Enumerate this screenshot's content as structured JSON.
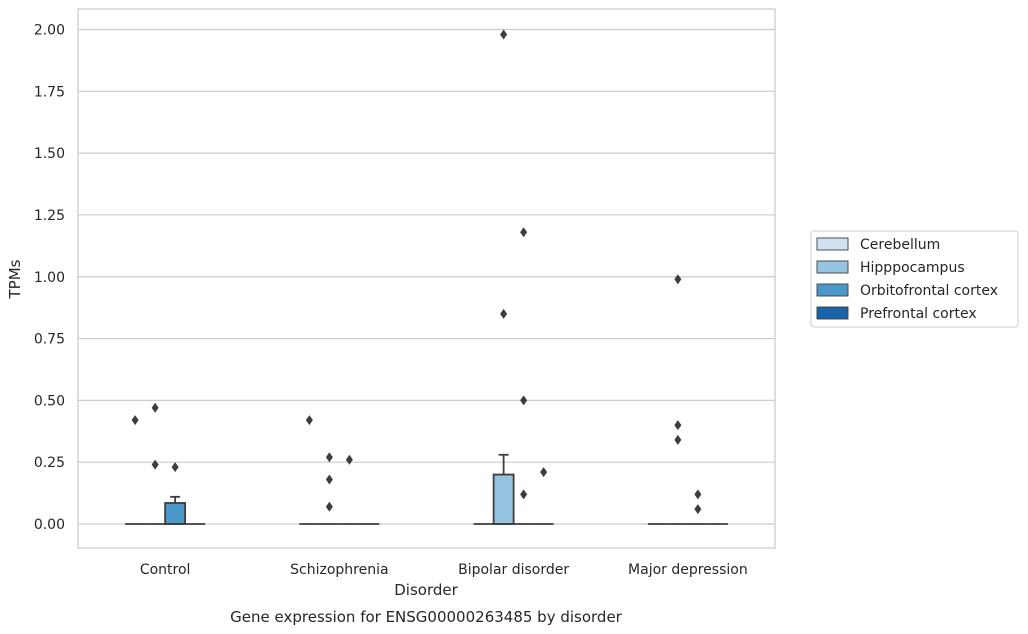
{
  "chart_data": {
    "type": "box",
    "title": "",
    "caption": "Gene expression for ENSG00000263485 by disorder",
    "xlabel": "Disorder",
    "ylabel": "TPMs",
    "ylim": [
      -0.1,
      2.08
    ],
    "yticks": [
      0.0,
      0.25,
      0.5,
      0.75,
      1.0,
      1.25,
      1.5,
      1.75,
      2.0
    ],
    "ytick_labels": [
      "0.00",
      "0.25",
      "0.50",
      "0.75",
      "1.00",
      "1.25",
      "1.50",
      "1.75",
      "2.00"
    ],
    "grid": "horizontal",
    "legend_placement": "right",
    "categories": [
      "Control",
      "Schizophrenia",
      "Bipolar disorder",
      "Major depression"
    ],
    "series": [
      {
        "name": "Cerebellum",
        "color": "#d0e1f2",
        "boxes": [
          {
            "category": "Control",
            "q1": 0,
            "median": 0,
            "q3": 0,
            "whisker_low": 0,
            "whisker_high": 0,
            "outliers": [
              0.42
            ]
          },
          {
            "category": "Schizophrenia",
            "q1": 0,
            "median": 0,
            "q3": 0,
            "whisker_low": 0,
            "whisker_high": 0,
            "outliers": [
              0.42
            ]
          },
          {
            "category": "Bipolar disorder",
            "q1": 0,
            "median": 0,
            "q3": 0,
            "whisker_low": 0,
            "whisker_high": 0,
            "outliers": []
          },
          {
            "category": "Major depression",
            "q1": 0,
            "median": 0,
            "q3": 0,
            "whisker_low": 0,
            "whisker_high": 0,
            "outliers": []
          }
        ]
      },
      {
        "name": "Hipppocampus",
        "color": "#94c4df",
        "boxes": [
          {
            "category": "Control",
            "q1": 0,
            "median": 0,
            "q3": 0,
            "whisker_low": 0,
            "whisker_high": 0,
            "outliers": [
              0.47,
              0.24
            ]
          },
          {
            "category": "Schizophrenia",
            "q1": 0,
            "median": 0,
            "q3": 0,
            "whisker_low": 0,
            "whisker_high": 0,
            "outliers": [
              0.27,
              0.18,
              0.07
            ]
          },
          {
            "category": "Bipolar disorder",
            "q1": 0,
            "median": 0,
            "q3": 0.2,
            "whisker_low": 0,
            "whisker_high": 0.28,
            "outliers": [
              1.98,
              0.85
            ]
          },
          {
            "category": "Major depression",
            "q1": 0,
            "median": 0,
            "q3": 0,
            "whisker_low": 0,
            "whisker_high": 0,
            "outliers": [
              0.99,
              0.4,
              0.34
            ]
          }
        ]
      },
      {
        "name": "Orbitofrontal cortex",
        "color": "#4a98c9",
        "boxes": [
          {
            "category": "Control",
            "q1": 0,
            "median": 0,
            "q3": 0.085,
            "whisker_low": 0,
            "whisker_high": 0.11,
            "outliers": [
              0.23
            ]
          },
          {
            "category": "Schizophrenia",
            "q1": 0,
            "median": 0,
            "q3": 0,
            "whisker_low": 0,
            "whisker_high": 0,
            "outliers": [
              0.26
            ]
          },
          {
            "category": "Bipolar disorder",
            "q1": 0,
            "median": 0,
            "q3": 0,
            "whisker_low": 0,
            "whisker_high": 0,
            "outliers": [
              1.18,
              0.5,
              0.12
            ]
          },
          {
            "category": "Major depression",
            "q1": 0,
            "median": 0,
            "q3": 0,
            "whisker_low": 0,
            "whisker_high": 0,
            "outliers": [
              0.12,
              0.06
            ]
          }
        ]
      },
      {
        "name": "Prefrontal cortex",
        "color": "#1764ab",
        "boxes": [
          {
            "category": "Control",
            "q1": 0,
            "median": 0,
            "q3": 0,
            "whisker_low": 0,
            "whisker_high": 0,
            "outliers": []
          },
          {
            "category": "Schizophrenia",
            "q1": 0,
            "median": 0,
            "q3": 0,
            "whisker_low": 0,
            "whisker_high": 0,
            "outliers": []
          },
          {
            "category": "Bipolar disorder",
            "q1": 0,
            "median": 0,
            "q3": 0,
            "whisker_low": 0,
            "whisker_high": 0,
            "outliers": [
              0.21
            ]
          },
          {
            "category": "Major depression",
            "q1": 0,
            "median": 0,
            "q3": 0,
            "whisker_low": 0,
            "whisker_high": 0,
            "outliers": []
          }
        ]
      }
    ]
  }
}
